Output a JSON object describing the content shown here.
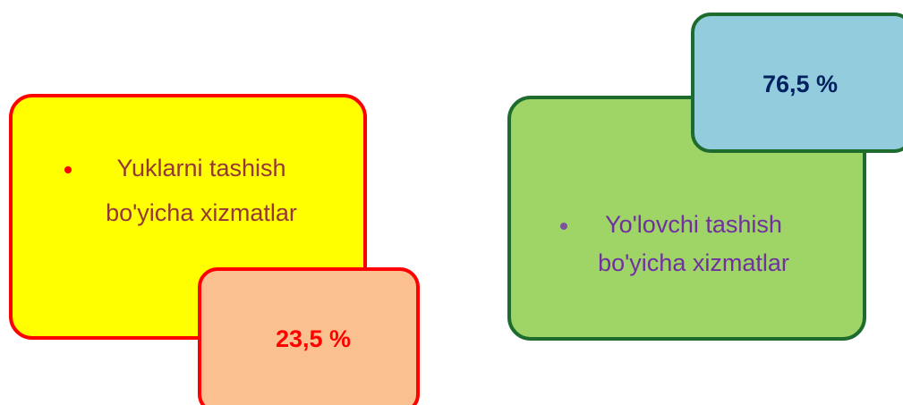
{
  "boxes": [
    {
      "lines": [
        "Yuklarni tashish",
        "bo'yicha xizmatlar"
      ],
      "share": "23,5 %"
    },
    {
      "lines": [
        "Yo'lovchi tashish",
        "bo'yicha xizmatlar"
      ],
      "share": "76,5 %"
    }
  ]
}
